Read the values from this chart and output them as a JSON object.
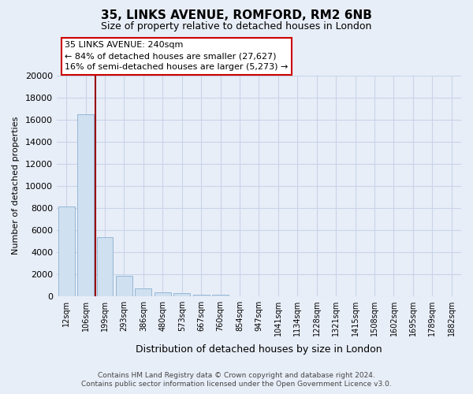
{
  "title": "35, LINKS AVENUE, ROMFORD, RM2 6NB",
  "subtitle": "Size of property relative to detached houses in London",
  "xlabel": "Distribution of detached houses by size in London",
  "ylabel": "Number of detached properties",
  "bar_labels": [
    "12sqm",
    "106sqm",
    "199sqm",
    "293sqm",
    "386sqm",
    "480sqm",
    "573sqm",
    "667sqm",
    "760sqm",
    "854sqm",
    "947sqm",
    "1041sqm",
    "1134sqm",
    "1228sqm",
    "1321sqm",
    "1415sqm",
    "1508sqm",
    "1602sqm",
    "1695sqm",
    "1789sqm",
    "1882sqm"
  ],
  "bar_values": [
    8100,
    16500,
    5300,
    1850,
    700,
    350,
    250,
    100,
    100,
    0,
    0,
    0,
    0,
    0,
    0,
    0,
    0,
    0,
    0,
    0,
    0
  ],
  "bar_color": "#cfe0f0",
  "bar_edge_color": "#8ab0d0",
  "highlight_color": "#990000",
  "highlight_bar_index": 2,
  "ylim": [
    0,
    20000
  ],
  "yticks": [
    0,
    2000,
    4000,
    6000,
    8000,
    10000,
    12000,
    14000,
    16000,
    18000,
    20000
  ],
  "annotation_title": "35 LINKS AVENUE: 240sqm",
  "annotation_line1": "← 84% of detached houses are smaller (27,627)",
  "annotation_line2": "16% of semi-detached houses are larger (5,273) →",
  "annotation_box_facecolor": "#ffffff",
  "annotation_box_edgecolor": "#cc0000",
  "footer_line1": "Contains HM Land Registry data © Crown copyright and database right 2024.",
  "footer_line2": "Contains public sector information licensed under the Open Government Licence v3.0.",
  "background_color": "#e8eef8",
  "grid_color": "#c8d4e8",
  "title_fontsize": 11,
  "subtitle_fontsize": 9,
  "ylabel_fontsize": 8,
  "xlabel_fontsize": 9,
  "tick_fontsize": 8,
  "xtick_fontsize": 7,
  "footer_fontsize": 6.5
}
